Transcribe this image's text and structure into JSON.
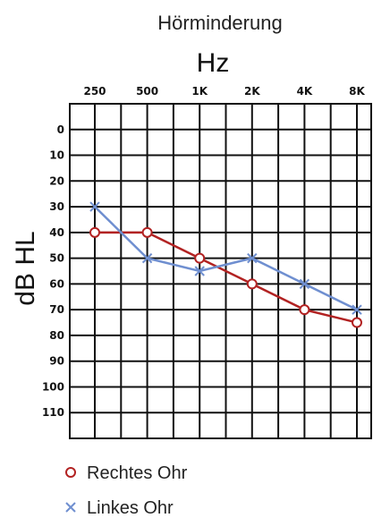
{
  "chart_data": {
    "type": "line",
    "title": "Hörminderung",
    "xlabel": "Hz",
    "ylabel": "dB HL",
    "categories": [
      "250",
      "500",
      "1K",
      "2K",
      "4K",
      "8K"
    ],
    "y_ticks": [
      0,
      10,
      20,
      30,
      40,
      50,
      60,
      70,
      80,
      90,
      100,
      110
    ],
    "ylim": [
      -10,
      120
    ],
    "y_inverted": true,
    "grid": true,
    "legend_position": "bottom-left",
    "series": [
      {
        "name": "Rechtes Ohr",
        "marker": "o",
        "color": "#b22222",
        "values": [
          40,
          40,
          50,
          60,
          70,
          75
        ]
      },
      {
        "name": "Linkes Ohr",
        "marker": "x",
        "color": "#6f8fd0",
        "values": [
          30,
          50,
          55,
          50,
          60,
          70
        ]
      }
    ]
  }
}
